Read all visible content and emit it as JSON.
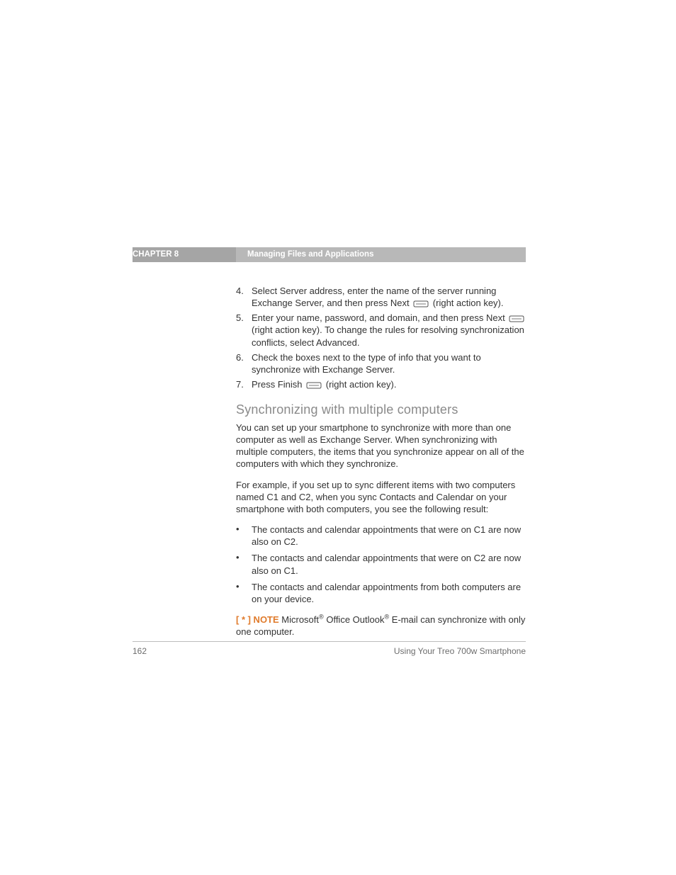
{
  "header": {
    "chapter_label": "CHAPTER 8",
    "chapter_title": "Managing Files and Applications"
  },
  "steps": [
    {
      "num": "4.",
      "parts": [
        {
          "t": "text",
          "v": "Select Server address, enter the name of the server running Exchange Server, and then press Next "
        },
        {
          "t": "icon"
        },
        {
          "t": "text",
          "v": " (right action key)."
        }
      ]
    },
    {
      "num": "5.",
      "parts": [
        {
          "t": "text",
          "v": "Enter your name, password, and domain, and then press Next "
        },
        {
          "t": "icon"
        },
        {
          "t": "text",
          "v": " (right action key). To change the rules for resolving synchronization conflicts, select Advanced."
        }
      ]
    },
    {
      "num": "6.",
      "parts": [
        {
          "t": "text",
          "v": "Check the boxes next to the type of info that you want to synchronize with Exchange Server."
        }
      ]
    },
    {
      "num": "7.",
      "parts": [
        {
          "t": "text",
          "v": "Press Finish "
        },
        {
          "t": "icon"
        },
        {
          "t": "text",
          "v": " (right action key)."
        }
      ]
    }
  ],
  "section_heading": "Synchronizing with multiple computers",
  "para1": "You can set up your smartphone to synchronize with more than one computer as well as Exchange Server. When synchronizing with multiple computers, the items that you synchronize appear on all of the computers with which they synchronize.",
  "para2": "For example, if you set up to sync different items with two computers named C1 and C2, when you sync Contacts and Calendar on your smartphone with both computers, you see the following result:",
  "bullets": [
    "The contacts and calendar appointments that were on C1 are now also on C2.",
    "The contacts and calendar appointments that were on C2 are now also on C1.",
    "The contacts and calendar appointments from both computers are on your device."
  ],
  "note": {
    "label": "[ * ] NOTE",
    "pre": "  Microsoft",
    "sup1": "®",
    "mid": " Office Outlook",
    "sup2": "®",
    "post": " E-mail can synchronize with only one computer."
  },
  "footer": {
    "page": "162",
    "title": "Using Your Treo 700w Smartphone"
  },
  "colors": {
    "chapter_left_bg": "#a5a5a5",
    "chapter_right_bg": "#b8b8b8",
    "heading_color": "#8a8a8a",
    "note_color": "#e07b2c",
    "body_text": "#333333",
    "footer_text": "#6d6d6d",
    "rule": "#bcbcbc"
  }
}
